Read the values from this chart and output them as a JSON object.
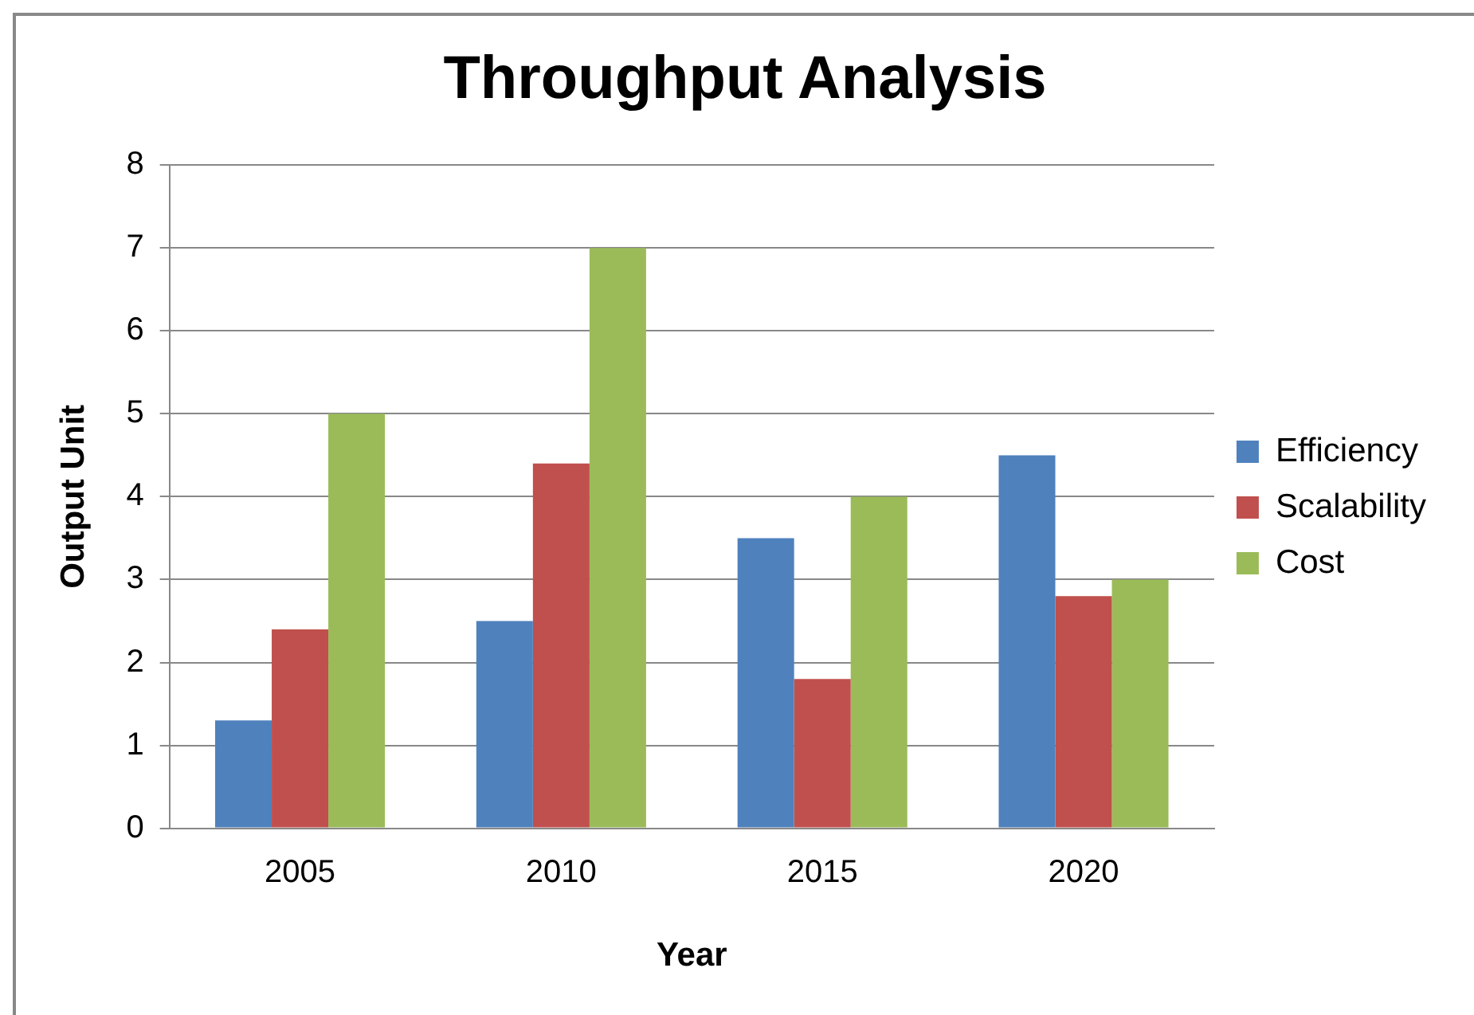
{
  "chart_data": {
    "type": "bar",
    "title": "Throughput Analysis",
    "xlabel": "Year",
    "ylabel": "Output Unit",
    "categories": [
      "2005",
      "2010",
      "2015",
      "2020"
    ],
    "series": [
      {
        "name": "Efficiency",
        "color": "#4f81bd",
        "values": [
          1.3,
          2.5,
          3.5,
          4.5
        ]
      },
      {
        "name": "Scalability",
        "color": "#c0504d",
        "values": [
          2.4,
          4.4,
          1.8,
          2.8
        ]
      },
      {
        "name": "Cost",
        "color": "#9bbb59",
        "values": [
          5,
          7,
          4,
          3
        ]
      }
    ],
    "ylim": [
      0,
      8
    ],
    "yticks": [
      0,
      1,
      2,
      3,
      4,
      5,
      6,
      7,
      8
    ],
    "grid": "y",
    "legend": "right"
  }
}
